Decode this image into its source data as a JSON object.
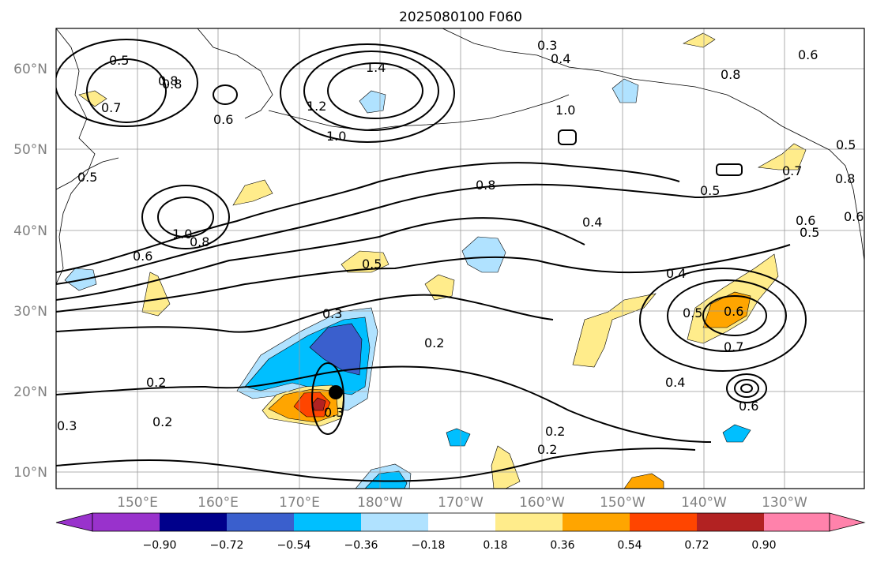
{
  "title": "2025080100 F060",
  "lat_labels": [
    "60°N",
    "50°N",
    "40°N",
    "30°N",
    "20°N",
    "10°N"
  ],
  "lon_labels": [
    "150°E",
    "160°E",
    "170°E",
    "180°W",
    "170°W",
    "160°W",
    "150°W",
    "140°W",
    "130°W"
  ],
  "colorbar": {
    "ticks": [
      "−0.90",
      "−0.72",
      "−0.54",
      "−0.36",
      "−0.18",
      "0.18",
      "0.36",
      "0.54",
      "0.72",
      "0.90"
    ],
    "colors": [
      "#9932cc",
      "#00008b",
      "#3a5fcd",
      "#00bfff",
      "#b0e2ff",
      "#ffffff",
      "#ffec8b",
      "#ffa500",
      "#ff4500",
      "#b22222",
      "#ff82ab"
    ]
  },
  "contour_labels": [
    "0.5",
    "0.6",
    "0.7",
    "0.8",
    "1.4",
    "1.2",
    "1.0",
    "0.3",
    "0.4",
    "1.0",
    "0.5",
    "0.7",
    "0.6",
    "0.8",
    "1.0",
    "0.8",
    "0.6",
    "0.5",
    "0.8",
    "0.5",
    "0.4",
    "0.4",
    "0.3",
    "0.2",
    "0.5",
    "0.6",
    "0.7",
    "0.4",
    "0.6",
    "0.2",
    "0.2",
    "0.3",
    "0.2",
    "0.2",
    "0.3",
    "0.5",
    "0.6",
    "0.8",
    "0.8",
    "0.6",
    "0.5"
  ],
  "marker": {
    "name": "storm-center",
    "lat": 20.0,
    "lon": 175.0
  }
}
